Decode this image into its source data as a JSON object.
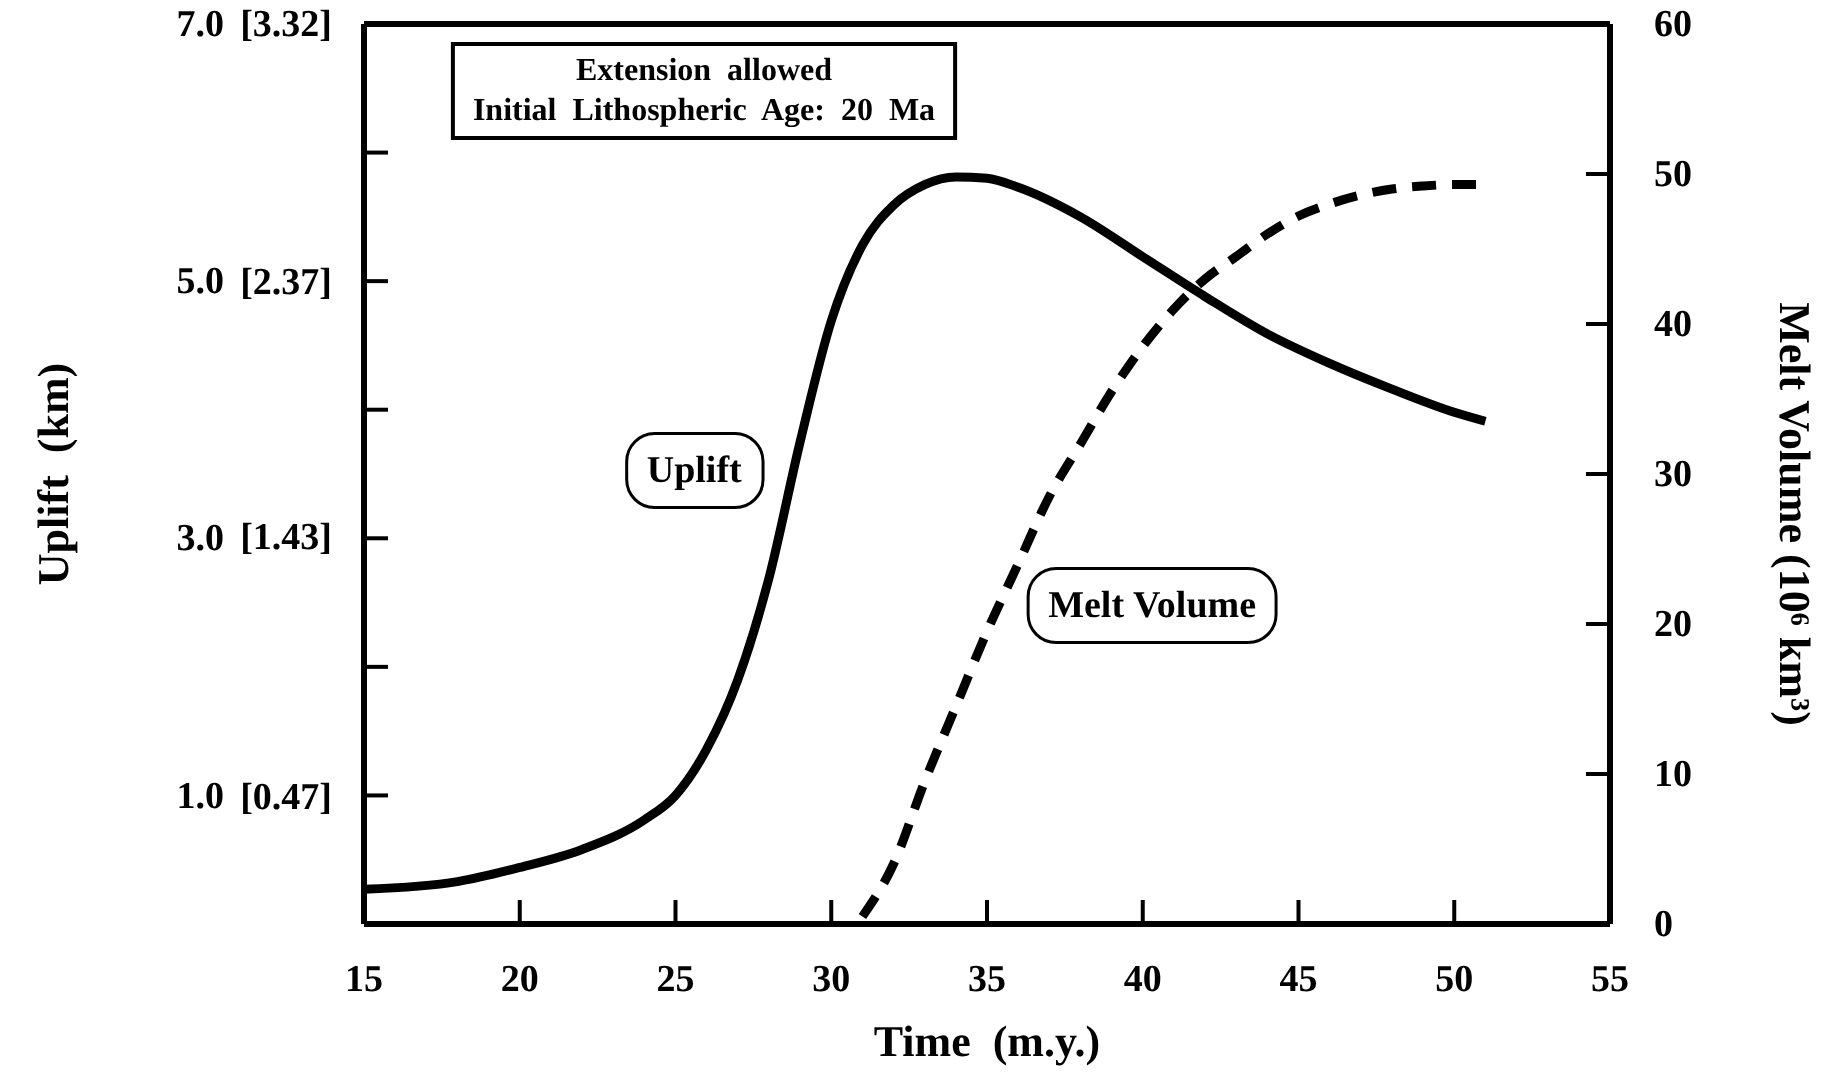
{
  "chart_data": {
    "type": "line",
    "xlabel": "Time  (m.y.)",
    "ylabel": "Uplift  (km)",
    "y2label": "Melt Volume (10⁶ km³)",
    "annotations": [
      "Extension  allowed",
      "Initial  Lithospheric  Age:  20  Ma"
    ],
    "xlim": [
      15,
      55
    ],
    "xticks": [
      15,
      20,
      25,
      30,
      35,
      40,
      45,
      50,
      55
    ],
    "ylim": [
      0,
      7
    ],
    "yticks": [
      {
        "value": 1,
        "label": "1.0"
      },
      {
        "value": 2,
        "label": null
      },
      {
        "value": 3,
        "label": "3.0"
      },
      {
        "value": 4,
        "label": null
      },
      {
        "value": 5,
        "label": "5.0"
      },
      {
        "value": 6,
        "label": null
      },
      {
        "value": 7,
        "label": "7.0"
      }
    ],
    "y3lim": [
      0,
      3.32
    ],
    "y3ticks": [
      {
        "value": 0.47,
        "label": "[0.47]"
      },
      {
        "value": 1.43,
        "label": "[1.43]"
      },
      {
        "value": 2.37,
        "label": "[2.37]"
      },
      {
        "value": 3.32,
        "label": "[3.32]"
      }
    ],
    "y2lim": [
      0,
      60
    ],
    "y2ticks": [
      0,
      10,
      20,
      30,
      40,
      50,
      60
    ],
    "grid": false,
    "series": [
      {
        "name": "Uplift",
        "color": "#000000",
        "line_style": "solid",
        "x": [
          15,
          18,
          20,
          22,
          24,
          25,
          26,
          27,
          28,
          29,
          30,
          31,
          32,
          33,
          34,
          35,
          36,
          38,
          40,
          42,
          44,
          46,
          48,
          50,
          51
        ],
        "values": [
          0.27,
          0.33,
          0.44,
          0.58,
          0.81,
          1.0,
          1.36,
          1.9,
          2.69,
          3.75,
          4.69,
          5.28,
          5.59,
          5.75,
          5.81,
          5.8,
          5.73,
          5.5,
          5.19,
          4.88,
          4.59,
          4.36,
          4.16,
          3.98,
          3.91
        ]
      },
      {
        "name": "Melt Volume",
        "color": "#000000",
        "line_style": "dashed",
        "axis": "y2",
        "x": [
          31,
          32,
          33,
          34,
          35,
          36,
          37,
          38,
          39,
          40,
          41,
          42,
          43,
          44,
          45,
          46,
          47,
          48,
          49,
          50,
          51
        ],
        "values": [
          0.5,
          4,
          9.5,
          14.5,
          19.5,
          24,
          28.5,
          32,
          35.5,
          38.5,
          41,
          43,
          44.5,
          46,
          47.2,
          48,
          48.6,
          49,
          49.2,
          49.3,
          49.3
        ]
      }
    ]
  }
}
